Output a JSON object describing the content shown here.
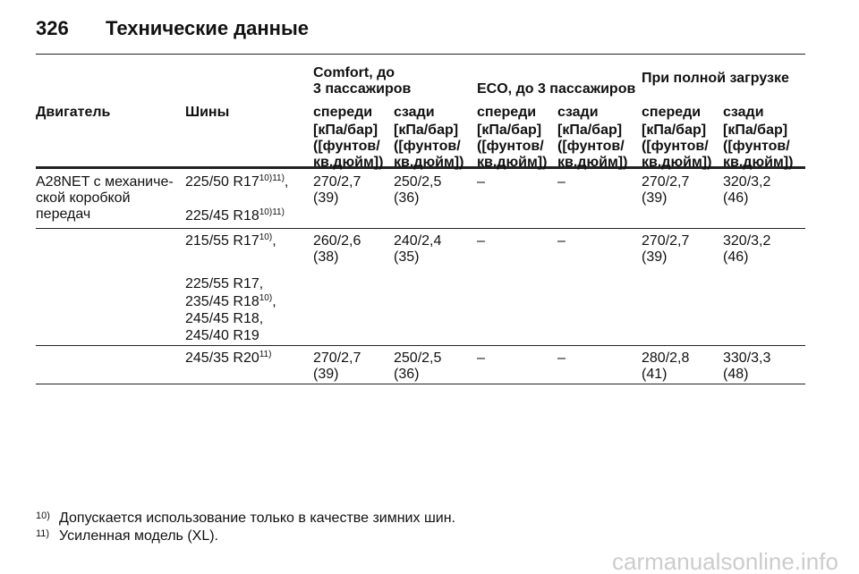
{
  "header": {
    "page_number": "326",
    "title": "Технические данные"
  },
  "table": {
    "group_headers": [
      [
        "Comfort, до",
        "3 пассажиров"
      ],
      [
        "ECO, до 3 пассажиров"
      ],
      [
        "При полной загрузке"
      ]
    ],
    "column_headers": [
      "Двигатель",
      "Шины",
      "спереди",
      "сзади",
      "спереди",
      "сзади",
      "спереди",
      "сзади"
    ],
    "units": [
      [
        "[кПа/бар]",
        "([фунтов/",
        "кв.дюйм])"
      ],
      [
        "[кПа/бар]",
        "([фунтов/",
        "кв.дюйм])"
      ],
      [
        "[кПа/бар]",
        "([фунтов/",
        "кв.дюйм])"
      ],
      [
        "[кПа/бар]",
        "([фунтов/",
        "кв.дюйм])"
      ],
      [
        "[кПа/бар]",
        "([фунтов/",
        "кв.дюйм])"
      ],
      [
        "[кПа/бар]",
        "([фунтов/",
        "кв.дюйм])"
      ]
    ],
    "engine": [
      "A28NET с механиче-",
      "ской коробкой",
      "передач"
    ],
    "rows": [
      {
        "tires": [
          {
            "text": "225/50 R17",
            "sup": "10)11)",
            "after": ","
          },
          {
            "text": "225/45 R18",
            "sup": "10)11)"
          }
        ],
        "values": [
          [
            "270/2,7",
            "(39)"
          ],
          [
            "250/2,5",
            "(36)"
          ],
          [
            "–"
          ],
          [
            "–"
          ],
          [
            "270/2,7",
            "(39)"
          ],
          [
            "320/3,2",
            "(46)"
          ]
        ]
      },
      {
        "tires": [
          {
            "text": "215/55 R17",
            "sup": "10)",
            "after": ","
          },
          {
            "text": "225/55 R17,"
          },
          {
            "text": "235/45 R18",
            "sup": "10)",
            "after": ","
          },
          {
            "text": "245/45 R18,"
          },
          {
            "text": "245/40 R19"
          }
        ],
        "values": [
          [
            "260/2,6",
            "(38)"
          ],
          [
            "240/2,4",
            "(35)"
          ],
          [
            "–"
          ],
          [
            "–"
          ],
          [
            "270/2,7",
            "(39)"
          ],
          [
            "320/3,2",
            "(46)"
          ]
        ]
      },
      {
        "tires": [
          {
            "text": "245/35 R20",
            "sup": "11)"
          }
        ],
        "values": [
          [
            "270/2,7",
            "(39)"
          ],
          [
            "250/2,5",
            "(36)"
          ],
          [
            "–"
          ],
          [
            "–"
          ],
          [
            "280/2,8",
            "(41)"
          ],
          [
            "330/3,3",
            "(48)"
          ]
        ]
      }
    ]
  },
  "footnotes": [
    {
      "mark": "10)",
      "text": "Допускается использование только в качестве зимних шин."
    },
    {
      "mark": "11)",
      "text": "Усиленная модель (XL)."
    }
  ],
  "watermark": "carmanualsonline.info"
}
